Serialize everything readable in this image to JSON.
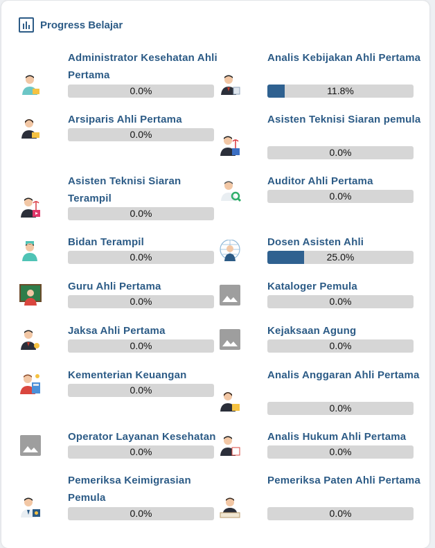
{
  "header": {
    "title": "Progress Belajar",
    "icon": "bar-chart-icon"
  },
  "accent_color": "#2f6190",
  "items": [
    {
      "title": "Administrator Kesehatan Ahli Pertama",
      "progress": "0.0%",
      "fraction": 0.0,
      "icon": "health-admin-icon"
    },
    {
      "title": "Analis Kebijakan Ahli Pertama",
      "progress": "11.8%",
      "fraction": 0.118,
      "icon": "policy-analyst-icon"
    },
    {
      "title": "Arsiparis Ahli Pertama",
      "progress": "0.0%",
      "fraction": 0.0,
      "icon": "archivist-icon"
    },
    {
      "title": "Asisten Teknisi Siaran pemula",
      "progress": "0.0%",
      "fraction": 0.0,
      "icon": "broadcast-tech-icon"
    },
    {
      "title": "Asisten Teknisi Siaran Terampil",
      "progress": "0.0%",
      "fraction": 0.0,
      "icon": "broadcast-skilled-icon"
    },
    {
      "title": "Auditor Ahli Pertama",
      "progress": "0.0%",
      "fraction": 0.0,
      "icon": "auditor-icon"
    },
    {
      "title": "Bidan Terampil",
      "progress": "0.0%",
      "fraction": 0.0,
      "icon": "midwife-icon"
    },
    {
      "title": "Dosen Asisten Ahli",
      "progress": "25.0%",
      "fraction": 0.25,
      "icon": "lecturer-icon"
    },
    {
      "title": "Guru Ahli Pertama",
      "progress": "0.0%",
      "fraction": 0.0,
      "icon": "teacher-icon"
    },
    {
      "title": "Kataloger Pemula",
      "progress": "0.0%",
      "fraction": 0.0,
      "icon": "image-placeholder-icon"
    },
    {
      "title": "Jaksa Ahli Pertama",
      "progress": "0.0%",
      "fraction": 0.0,
      "icon": "prosecutor-icon"
    },
    {
      "title": "Kejaksaan Agung",
      "progress": "0.0%",
      "fraction": 0.0,
      "icon": "image-placeholder-icon"
    },
    {
      "title": "Kementerian Keuangan",
      "progress": "0.0%",
      "fraction": 0.0,
      "icon": "finance-ministry-icon"
    },
    {
      "title": "Analis Anggaran Ahli Pertama",
      "progress": "0.0%",
      "fraction": 0.0,
      "icon": "budget-analyst-icon"
    },
    {
      "title": "Operator Layanan Kesehatan",
      "progress": "0.0%",
      "fraction": 0.0,
      "icon": "image-placeholder-icon"
    },
    {
      "title": "Analis Hukum Ahli Pertama",
      "progress": "0.0%",
      "fraction": 0.0,
      "icon": "legal-analyst-icon"
    },
    {
      "title": "Pemeriksa Keimigrasian Pemula",
      "progress": "0.0%",
      "fraction": 0.0,
      "icon": "immigration-inspector-icon"
    },
    {
      "title": "Pemeriksa Paten Ahli Pertama",
      "progress": "0.0%",
      "fraction": 0.0,
      "icon": "patent-examiner-icon"
    }
  ]
}
